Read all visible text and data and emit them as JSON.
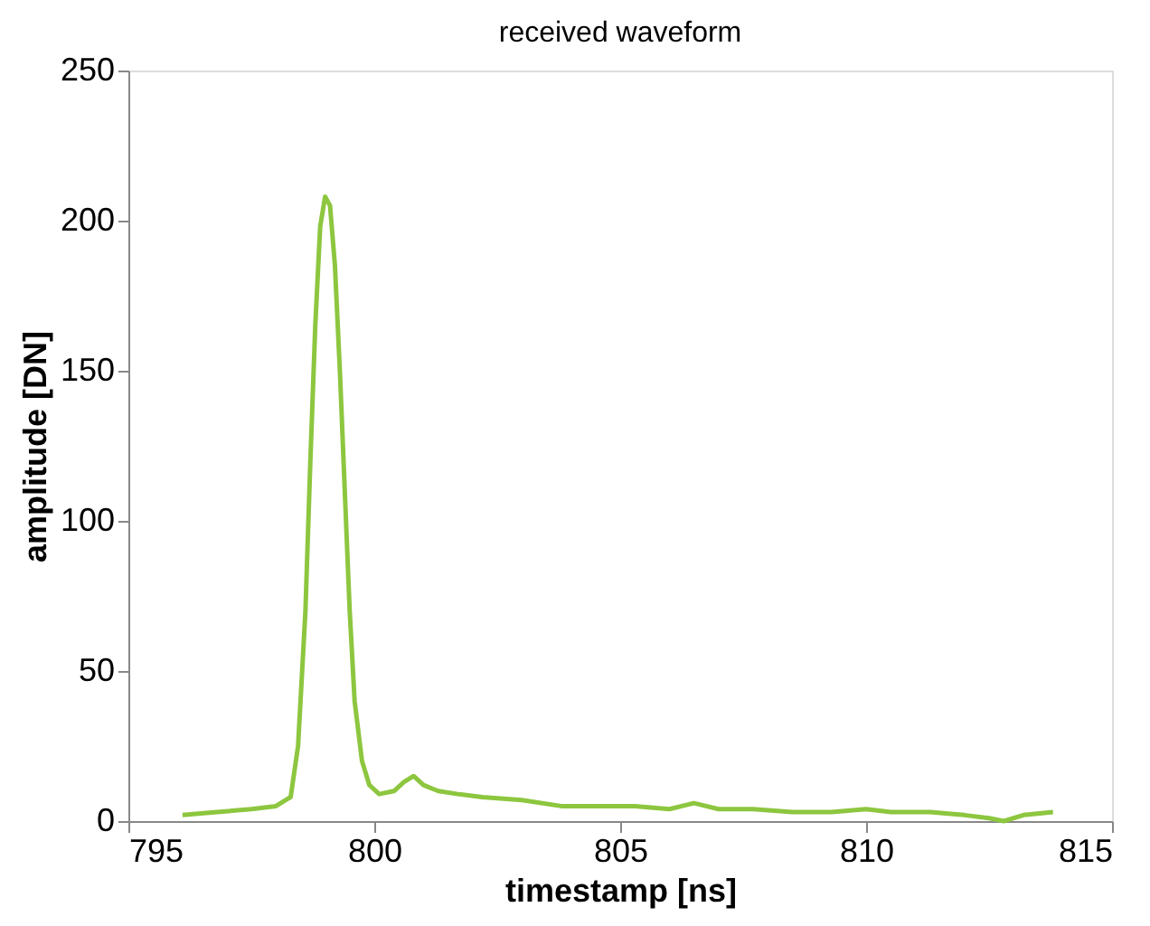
{
  "chart_data": {
    "type": "line",
    "title": "received waveform",
    "xlabel": "timestamp [ns]",
    "ylabel": "amplitude [DN]",
    "x": [
      796.1,
      796.8,
      797.5,
      798.0,
      798.3,
      798.45,
      798.6,
      798.7,
      798.8,
      798.9,
      799.0,
      799.1,
      799.2,
      799.3,
      799.4,
      799.5,
      799.6,
      799.75,
      799.9,
      800.1,
      800.4,
      800.6,
      800.8,
      801.0,
      801.3,
      801.7,
      802.2,
      803.0,
      803.8,
      804.5,
      805.3,
      806.0,
      806.5,
      807.0,
      807.7,
      808.5,
      809.3,
      810.0,
      810.5,
      811.3,
      812.0,
      812.5,
      812.8,
      813.2,
      813.8
    ],
    "series": [
      {
        "color": "#8dc63f",
        "values": [
          2,
          3,
          4,
          5,
          8,
          25,
          70,
          120,
          165,
          198,
          208,
          205,
          185,
          150,
          110,
          70,
          40,
          20,
          12,
          9,
          10,
          13,
          15,
          12,
          10,
          9,
          8,
          7,
          5,
          5,
          5,
          4,
          6,
          4,
          4,
          3,
          3,
          4,
          3,
          3,
          2,
          1,
          0,
          2,
          3
        ]
      }
    ],
    "xlim": [
      795,
      815
    ],
    "ylim": [
      0,
      250
    ],
    "xticks": [
      795,
      800,
      805,
      810,
      815
    ],
    "yticks": [
      0,
      50,
      100,
      150,
      200,
      250
    ],
    "grid": false,
    "marker": "none",
    "line_style": "solid"
  }
}
